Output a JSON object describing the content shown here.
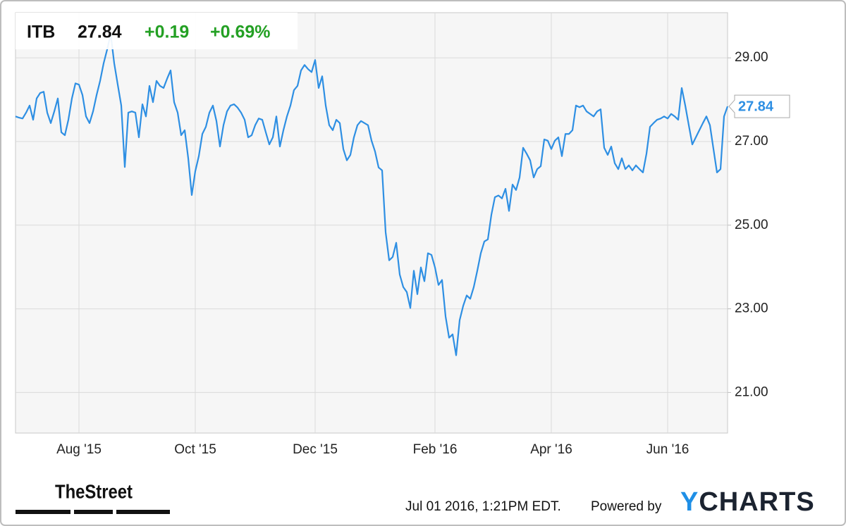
{
  "header": {
    "ticker": "ITB",
    "price": 27.84,
    "change": "+0.19",
    "change_percent": "+0.69%"
  },
  "footer": {
    "source": "TheStreet",
    "timestamp": "Jul 01 2016, 1:21PM EDT.",
    "powered": "Powered by",
    "brand": "YCHARTS"
  },
  "chart_data": {
    "type": "line",
    "categories": [
      null,
      null,
      null,
      null,
      null,
      null,
      null,
      null,
      null,
      null,
      null,
      null,
      null,
      null,
      null,
      null,
      null,
      null,
      "Aug '15",
      null,
      null,
      null,
      null,
      null,
      null,
      null,
      null,
      null,
      null,
      null,
      null,
      null,
      null,
      null,
      null,
      null,
      null,
      null,
      null,
      null,
      null,
      null,
      null,
      null,
      null,
      null,
      null,
      null,
      null,
      null,
      null,
      "Oct '15",
      null,
      null,
      null,
      null,
      null,
      null,
      null,
      null,
      null,
      null,
      null,
      null,
      null,
      null,
      null,
      null,
      null,
      null,
      null,
      null,
      null,
      null,
      null,
      null,
      null,
      null,
      null,
      null,
      null,
      null,
      null,
      null,
      null,
      "Dec '15",
      null,
      null,
      null,
      null,
      null,
      null,
      null,
      null,
      null,
      null,
      null,
      null,
      null,
      null,
      null,
      null,
      null,
      null,
      null,
      null,
      null,
      null,
      null,
      null,
      null,
      null,
      null,
      null,
      null,
      null,
      null,
      null,
      null,
      "Feb '16",
      null,
      null,
      null,
      null,
      null,
      null,
      null,
      null,
      null,
      null,
      null,
      null,
      null,
      null,
      null,
      null,
      null,
      null,
      null,
      null,
      null,
      null,
      null,
      null,
      null,
      null,
      null,
      null,
      null,
      null,
      null,
      null,
      "Apr '16",
      null,
      null,
      null,
      null,
      null,
      null,
      null,
      null,
      null,
      null,
      null,
      null,
      null,
      null,
      null,
      null,
      null,
      null,
      null,
      null,
      null,
      null,
      null,
      null,
      null,
      null,
      null,
      null,
      null,
      null,
      null,
      null,
      "Jun '16",
      null,
      null,
      null,
      null,
      null,
      null,
      null,
      null,
      null,
      null,
      null,
      null,
      null,
      null,
      null,
      null,
      null
    ],
    "series": [
      {
        "name": "ITB",
        "color": "#2e8fe3",
        "values": [
          27.6,
          27.57,
          27.55,
          27.69,
          27.86,
          27.52,
          28.03,
          28.16,
          28.19,
          27.69,
          27.44,
          27.72,
          28.03,
          27.22,
          27.15,
          27.52,
          28.03,
          28.39,
          28.36,
          28.11,
          27.6,
          27.44,
          27.72,
          28.11,
          28.45,
          28.87,
          29.2,
          29.57,
          28.87,
          28.36,
          27.86,
          26.39,
          27.69,
          27.72,
          27.69,
          27.1,
          27.89,
          27.6,
          28.33,
          27.94,
          28.45,
          28.33,
          28.28,
          28.5,
          28.7,
          27.94,
          27.69,
          27.15,
          27.27,
          26.6,
          25.72,
          26.29,
          26.65,
          27.18,
          27.35,
          27.69,
          27.86,
          27.49,
          26.88,
          27.39,
          27.72,
          27.86,
          27.89,
          27.81,
          27.69,
          27.52,
          27.1,
          27.15,
          27.39,
          27.55,
          27.52,
          27.22,
          26.93,
          27.1,
          27.6,
          26.88,
          27.27,
          27.6,
          27.86,
          28.23,
          28.33,
          28.7,
          28.83,
          28.73,
          28.66,
          28.95,
          28.28,
          28.56,
          27.86,
          27.39,
          27.27,
          27.52,
          27.44,
          26.82,
          26.55,
          26.68,
          27.1,
          27.39,
          27.49,
          27.44,
          27.39,
          27.02,
          26.76,
          26.38,
          26.31,
          24.83,
          24.16,
          24.24,
          24.58,
          23.82,
          23.52,
          23.4,
          23.02,
          23.91,
          23.35,
          23.99,
          23.66,
          24.33,
          24.29,
          23.99,
          23.57,
          23.69,
          22.82,
          22.31,
          22.39,
          21.89,
          22.73,
          23.07,
          23.32,
          23.24,
          23.52,
          23.91,
          24.33,
          24.61,
          24.66,
          25.25,
          25.67,
          25.71,
          25.64,
          25.87,
          25.34,
          25.97,
          25.84,
          26.14,
          26.85,
          26.71,
          26.55,
          26.14,
          26.34,
          26.41,
          27.05,
          27.02,
          26.82,
          27.02,
          27.1,
          26.65,
          27.18,
          27.18,
          27.27,
          27.86,
          27.82,
          27.86,
          27.72,
          27.66,
          27.6,
          27.72,
          27.77,
          26.85,
          26.68,
          26.88,
          26.48,
          26.34,
          26.6,
          26.34,
          26.43,
          26.31,
          26.43,
          26.34,
          26.26,
          26.71,
          27.35,
          27.44,
          27.52,
          27.55,
          27.6,
          27.55,
          27.66,
          27.6,
          27.52,
          28.28,
          27.86,
          27.39,
          26.93,
          27.1,
          27.27,
          27.44,
          27.6,
          27.39,
          26.82,
          26.26,
          26.34,
          27.6,
          27.84
        ]
      }
    ],
    "ylim": [
      20.03,
      30.08
    ],
    "yticks": [
      {
        "value": 21,
        "label": "21.00"
      },
      {
        "value": 23,
        "label": "23.00"
      },
      {
        "value": 25,
        "label": "25.00"
      },
      {
        "value": 27,
        "label": "27.00"
      },
      {
        "value": 29,
        "label": "29.00"
      }
    ],
    "grid": true
  }
}
